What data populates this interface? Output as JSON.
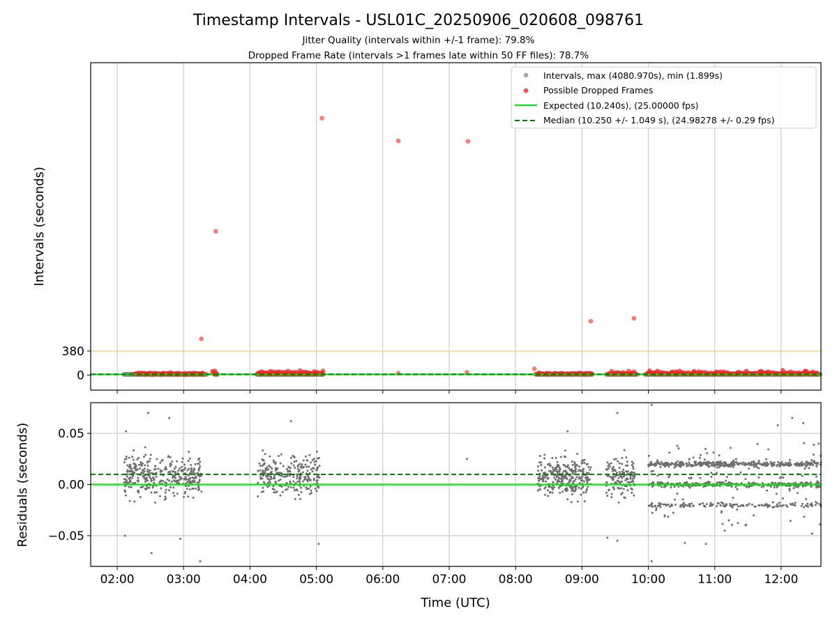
{
  "chart_data": [
    {
      "type": "scatter",
      "title": "Timestamp Intervals - USL01C_20250906_020608_098761",
      "subtitle_lines": [
        "Jitter Quality (intervals within +/-1 frame): 79.8%",
        "Dropped Frame Rate (intervals >1 frames late within 50 FF files): 78.7%"
      ],
      "xlabel": "",
      "ylabel": "Intervals (seconds)",
      "xlim": [
        "01:36",
        "12:36"
      ],
      "ylim": [
        -240,
        4960
      ],
      "yticks": [
        {
          "value": 0,
          "label": "0"
        },
        {
          "value": 380,
          "label": "380"
        }
      ],
      "grid": "vertical",
      "legend_position": "upper-right",
      "threshold_line": {
        "value": 380,
        "color": "#ffc04d"
      },
      "colors": {
        "intervals": "#808080",
        "dropped": "#ff2020",
        "expected": "#10e010",
        "median": "#007a00"
      },
      "legend": [
        {
          "label": "Intervals, max (4080.970s), min (1.899s)",
          "kind": "dot",
          "color": "#a8a8a8"
        },
        {
          "label": "Possible Dropped Frames",
          "kind": "dot",
          "color": "#ff5050"
        },
        {
          "label": "Expected (10.240s), (25.00000 fps)",
          "kind": "line",
          "color": "#10e010"
        },
        {
          "label": "Median (10.250 +/- 1.049 s), (24.98278 +/- 0.29 fps)",
          "kind": "dash",
          "color": "#007a00"
        }
      ],
      "series": [
        {
          "name": "Intervals",
          "baseline_value": 10.24,
          "segments": [
            [
              "02:06",
              "03:21"
            ],
            [
              "03:28",
              "03:31"
            ],
            [
              "04:06",
              "05:07"
            ],
            [
              "08:18",
              "09:10"
            ],
            [
              "09:22",
              "09:50"
            ],
            [
              "09:57",
              "12:36"
            ]
          ]
        },
        {
          "name": "Possible Dropped Frames",
          "clusters": [
            {
              "start": "02:16",
              "end": "03:18",
              "values": [
                15,
                20,
                28,
                12,
                18,
                35,
                22,
                17,
                25,
                30
              ]
            },
            {
              "start": "03:26",
              "end": "03:30",
              "values": [
                60,
                25,
                18
              ]
            },
            {
              "start": "04:07",
              "end": "05:06",
              "values": [
                20,
                28,
                45,
                18,
                25,
                55,
                22,
                35,
                20,
                60,
                30
              ]
            },
            {
              "start": "08:19",
              "end": "09:09",
              "values": [
                18,
                25,
                20,
                30,
                15,
                22,
                28,
                20,
                25,
                18
              ]
            },
            {
              "start": "09:24",
              "end": "09:48",
              "values": [
                18,
                35,
                25,
                20,
                55,
                22,
                30
              ]
            },
            {
              "start": "09:59",
              "end": "12:33",
              "values": [
                20,
                40,
                35,
                70,
                25,
                55,
                30,
                22,
                18,
                45,
                28,
                35,
                20,
                60,
                25,
                30,
                22,
                40,
                18,
                25,
                30,
                20,
                28,
                22,
                35,
                18,
                25,
                20
              ]
            }
          ],
          "points": [
            {
              "x": "03:16",
              "y": 575
            },
            {
              "x": "03:29",
              "y": 2283
            },
            {
              "x": "05:05",
              "y": 4080
            },
            {
              "x": "06:14",
              "y": 3720
            },
            {
              "x": "07:17",
              "y": 3711
            },
            {
              "x": "07:16",
              "y": 45
            },
            {
              "x": "06:14",
              "y": 30
            },
            {
              "x": "08:17",
              "y": 100
            },
            {
              "x": "09:08",
              "y": 855
            },
            {
              "x": "09:47",
              "y": 900
            }
          ]
        },
        {
          "name": "Expected",
          "value": 10.24
        },
        {
          "name": "Median",
          "value": 10.25
        }
      ]
    },
    {
      "type": "scatter",
      "xlabel": "Time (UTC)",
      "ylabel": "Residuals (seconds)",
      "xlim": [
        "01:36",
        "12:36"
      ],
      "ylim": [
        -0.08,
        0.08
      ],
      "yticks": [
        {
          "value": 0.05,
          "label": "0.05"
        },
        {
          "value": 0.0,
          "label": "0.00"
        },
        {
          "value": -0.05,
          "label": "−0.05"
        }
      ],
      "xticks": [
        "02:00",
        "03:00",
        "04:00",
        "05:00",
        "06:00",
        "07:00",
        "08:00",
        "09:00",
        "10:00",
        "11:00",
        "12:00"
      ],
      "grid": "both",
      "expected_line": 0.0,
      "median_line": 0.01,
      "residual_clusters": [
        {
          "start": "02:06",
          "end": "03:17",
          "count": 360,
          "pattern": "spread"
        },
        {
          "start": "04:07",
          "end": "05:03",
          "count": 260,
          "pattern": "spread"
        },
        {
          "start": "08:20",
          "end": "09:08",
          "count": 300,
          "pattern": "spread"
        },
        {
          "start": "09:22",
          "end": "09:48",
          "count": 140,
          "pattern": "spread"
        },
        {
          "start": "10:00",
          "end": "12:36",
          "count": 900,
          "pattern": "bands"
        }
      ],
      "residual_points": [
        {
          "x": "02:08",
          "y": 0.052
        },
        {
          "x": "02:28",
          "y": 0.07
        },
        {
          "x": "02:47",
          "y": 0.065
        },
        {
          "x": "03:15",
          "y": -0.075
        },
        {
          "x": "02:07",
          "y": -0.05
        },
        {
          "x": "02:31",
          "y": -0.067
        },
        {
          "x": "02:57",
          "y": -0.053
        },
        {
          "x": "04:37",
          "y": 0.062
        },
        {
          "x": "05:02",
          "y": -0.058
        },
        {
          "x": "07:16",
          "y": 0.025
        },
        {
          "x": "09:32",
          "y": 0.07
        },
        {
          "x": "10:03",
          "y": 0.078
        },
        {
          "x": "10:03",
          "y": -0.075
        },
        {
          "x": "10:33",
          "y": -0.057
        },
        {
          "x": "10:52",
          "y": -0.058
        },
        {
          "x": "11:09",
          "y": -0.045
        },
        {
          "x": "11:57",
          "y": 0.058
        },
        {
          "x": "12:10",
          "y": 0.065
        },
        {
          "x": "12:20",
          "y": 0.06
        },
        {
          "x": "12:28",
          "y": -0.048
        },
        {
          "x": "12:34",
          "y": 0.04
        },
        {
          "x": "08:47",
          "y": 0.052
        },
        {
          "x": "09:23",
          "y": -0.052
        },
        {
          "x": "09:32",
          "y": -0.055
        }
      ]
    }
  ]
}
